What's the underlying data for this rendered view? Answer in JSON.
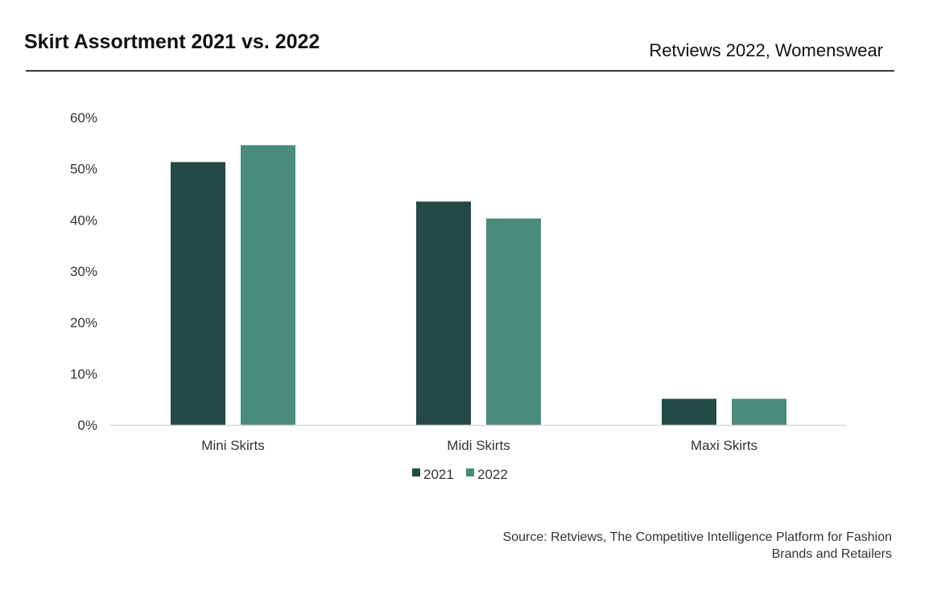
{
  "header": {
    "title": "Skirt Assortment 2021 vs. 2022",
    "subtitle": "Retviews 2022, Womenswear"
  },
  "footer": {
    "source_line1": "Source: Retviews, The Competitive Intelligence Platform for Fashion",
    "source_line2": "Brands and Retailers"
  },
  "colors": {
    "series_2021": "#234a45",
    "series_2022": "#4a8c7b",
    "axis": "#d9d9d9",
    "rule": "#3a3a3a"
  },
  "chart_data": {
    "type": "bar",
    "title": "Skirt Assortment 2021 vs. 2022",
    "xlabel": "",
    "ylabel": "",
    "categories": [
      "Mini Skirts",
      "Midi Skirts",
      "Maxi Skirts"
    ],
    "series": [
      {
        "name": "2021",
        "values": [
          51.3,
          43.6,
          5.1
        ]
      },
      {
        "name": "2022",
        "values": [
          54.6,
          40.3,
          5.1
        ]
      }
    ],
    "ylim": [
      0,
      60
    ],
    "yticks": [
      0,
      10,
      20,
      30,
      40,
      50,
      60
    ],
    "ytick_labels": [
      "0%",
      "10%",
      "20%",
      "30%",
      "40%",
      "50%",
      "60%"
    ],
    "grid": false,
    "legend_position": "bottom-center"
  }
}
